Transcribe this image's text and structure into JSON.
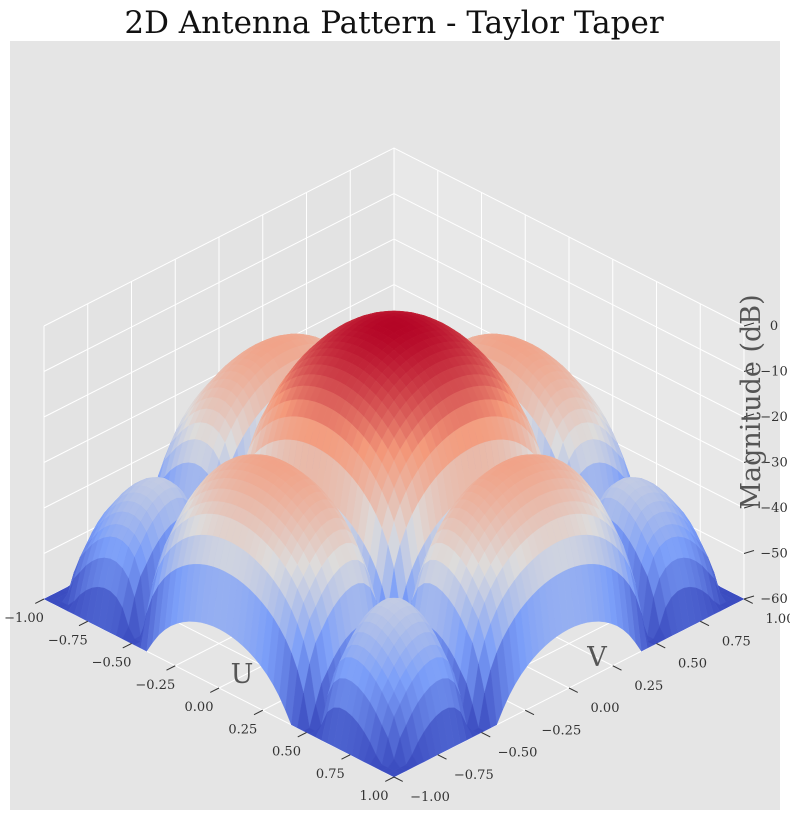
{
  "chart_data": {
    "type": "surface",
    "title": "2D Antenna Pattern - Taylor Taper",
    "xlabel": "U",
    "ylabel": "V",
    "zlabel": "Magnitude (dB)",
    "xlim": [
      -1.0,
      1.0
    ],
    "ylim": [
      -1.0,
      1.0
    ],
    "zlim": [
      -60,
      0
    ],
    "xticks": [
      "−1.00",
      "−0.75",
      "−0.50",
      "−0.25",
      "0.00",
      "0.25",
      "0.50",
      "0.75",
      "1.00"
    ],
    "yticks": [
      "−1.00",
      "−0.75",
      "−0.50",
      "−0.25",
      "0.00",
      "0.25",
      "0.50",
      "0.75",
      "1.00"
    ],
    "zticks": [
      "0",
      "−10",
      "−20",
      "−30",
      "−40",
      "−50",
      "−60"
    ],
    "colormap": "coolwarm",
    "grid": true,
    "peak": {
      "u": 0.0,
      "v": 0.0,
      "magnitude_db": 0
    },
    "first_sidelobe_db": -16,
    "floor_db": -60,
    "colors": {
      "pane": "#e5e5e5",
      "grid": "#ffffff",
      "low": "#3b4cc0",
      "mid": "#dddcdc",
      "high": "#b40426"
    }
  }
}
